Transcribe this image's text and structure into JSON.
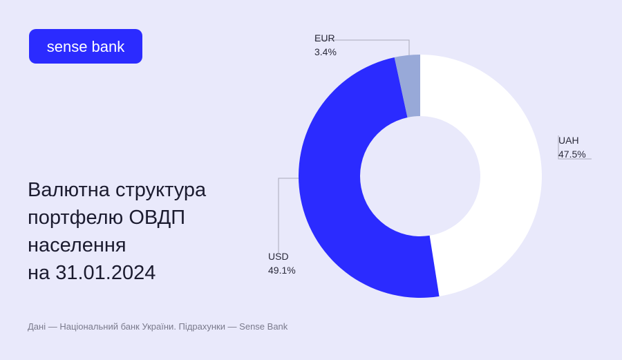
{
  "logo": "sense bank",
  "title": [
    "Валютна структура",
    "портфелю ОВДП",
    "населення",
    "на 31.01.2024"
  ],
  "source": "Дані — Національний банк України. Підрахунки — Sense Bank",
  "chart_data": {
    "type": "pie",
    "donut": true,
    "categories": [
      "UAH",
      "USD",
      "EUR"
    ],
    "values": [
      47.5,
      49.1,
      3.4
    ],
    "value_labels": [
      "47.5%",
      "49.1%",
      "3.4%"
    ],
    "colors": [
      "#ffffff",
      "#2b2bff",
      "#98a9d8"
    ]
  }
}
